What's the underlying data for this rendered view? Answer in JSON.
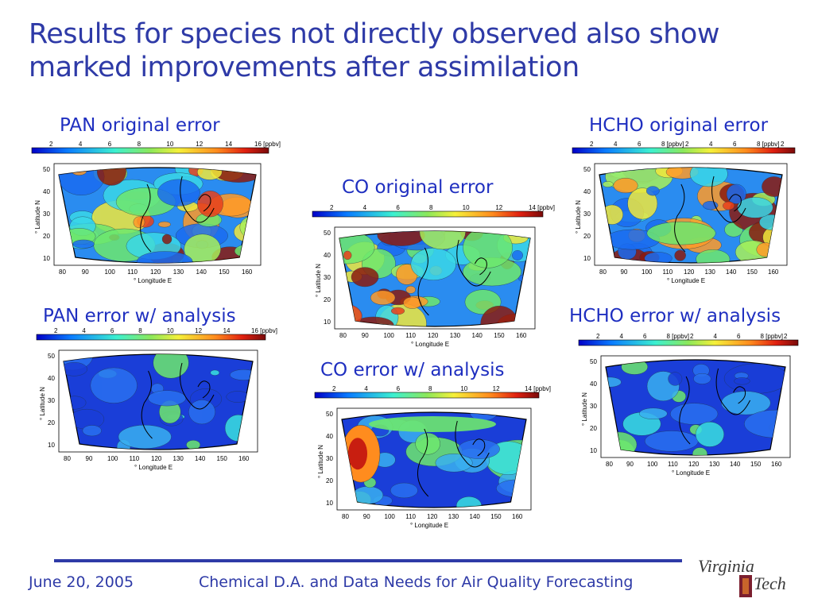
{
  "title": {
    "line1": "Results for species not directly observed also show",
    "line2": "marked improvements after assimilation"
  },
  "panels": [
    {
      "id": "pan_orig",
      "label": "PAN original error",
      "cb": [
        "2",
        "4",
        "6",
        "8",
        "10",
        "12",
        "14",
        "16 [ppbv]"
      ],
      "fill": "orig"
    },
    {
      "id": "pan_an",
      "label": "PAN error w/ analysis",
      "cb": [
        "2",
        "4",
        "6",
        "8",
        "10",
        "12",
        "14",
        "16 [ppbv]"
      ],
      "fill": "an"
    },
    {
      "id": "co_orig",
      "label": "CO original error",
      "cb": [
        "2",
        "4",
        "6",
        "8",
        "10",
        "12",
        "14 [ppbv]"
      ],
      "fill": "orig"
    },
    {
      "id": "co_an",
      "label": "CO error w/ analysis",
      "cb": [
        "2",
        "4",
        "6",
        "8",
        "10",
        "12",
        "14 [ppbv]"
      ],
      "fill": "an"
    },
    {
      "id": "hcho_orig",
      "label": "HCHO original error",
      "cb": [
        "2",
        "4",
        "6",
        "8 [ppbv]",
        "2",
        "4",
        "6",
        "8 [ppbv]",
        "2"
      ],
      "fill": "orig"
    },
    {
      "id": "hcho_an",
      "label": "HCHO error w/ analysis",
      "cb": [
        "2",
        "4",
        "6",
        "8 [ppbv]",
        "2",
        "4",
        "6",
        "8 [ppbv]",
        "2"
      ],
      "fill": "an"
    }
  ],
  "axes": {
    "ylabel": "° Latitude N",
    "xlabel": "° Longitude E",
    "yticks": [
      "50",
      "40",
      "30",
      "20",
      "10"
    ],
    "xticks": [
      "80",
      "90",
      "100",
      "110",
      "120",
      "130",
      "140",
      "150",
      "160"
    ]
  },
  "footer": {
    "date": "June 20, 2005",
    "talk": "Chemical D.A. and Data Needs for Air Quality Forecasting"
  },
  "logo": {
    "text1": "Virginia",
    "text2": "Tech",
    "colors": {
      "maroon": "#7b1e2e",
      "orange": "#c8642b"
    }
  },
  "colors": {
    "title": "#2e3aa7",
    "panel_title": "#1f2fc0"
  }
}
